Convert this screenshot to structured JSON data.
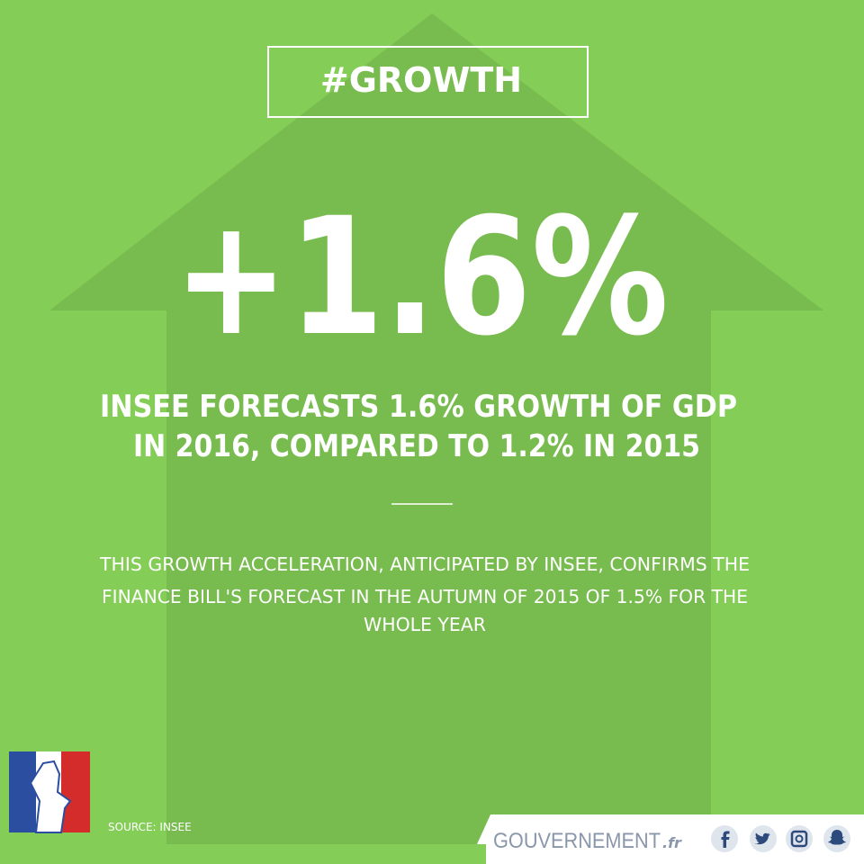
{
  "tag": "#GROWTH",
  "headline": "+1.6%",
  "subtitle": [
    "INSEE FORECASTS 1.6% GROWTH OF GDP",
    "IN 2016, COMPARED TO 1.2% IN 2015"
  ],
  "body": [
    "THIS GROWTH ACCELERATION, ANTICIPATED BY INSEE, CONFIRMS THE",
    "FINANCE BILL'S FORECAST IN THE AUTUMN OF 2015 OF 1.5% FOR THE",
    "WHOLE YEAR"
  ],
  "source": "SOURCE: INSEE",
  "footer": {
    "brand": "GOUVERNEMENT",
    "suffix": ".fr"
  }
}
